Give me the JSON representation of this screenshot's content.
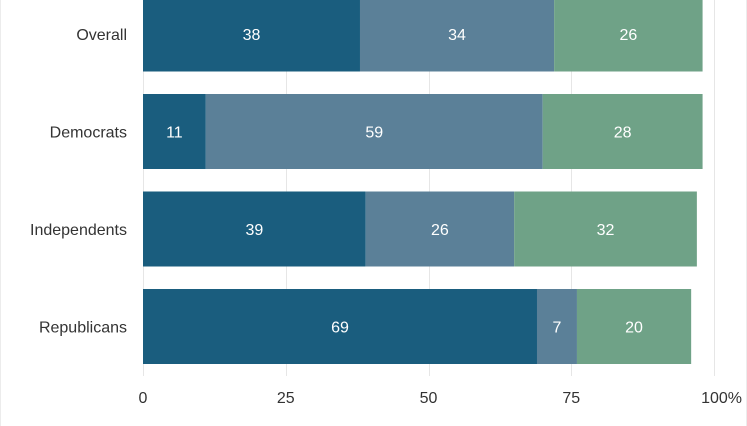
{
  "chart_data": {
    "type": "bar",
    "orientation": "horizontal",
    "stacked": true,
    "categories": [
      "Overall",
      "Democrats",
      "Independents",
      "Republicans"
    ],
    "series": [
      {
        "values": [
          38,
          11,
          39,
          69
        ],
        "color": "#1a5d7e"
      },
      {
        "values": [
          34,
          59,
          26,
          7
        ],
        "color": "#5b8098"
      },
      {
        "values": [
          26,
          28,
          32,
          20
        ],
        "color": "#6fa287"
      }
    ],
    "xlim": [
      0,
      100
    ],
    "ticks": [
      {
        "value": 0,
        "label": "0"
      },
      {
        "value": 25,
        "label": "25"
      },
      {
        "value": 50,
        "label": "50"
      },
      {
        "value": 75,
        "label": "75"
      },
      {
        "value": 100,
        "label": "100%"
      }
    ],
    "grid": true,
    "title": "",
    "xlabel": "",
    "ylabel": ""
  }
}
